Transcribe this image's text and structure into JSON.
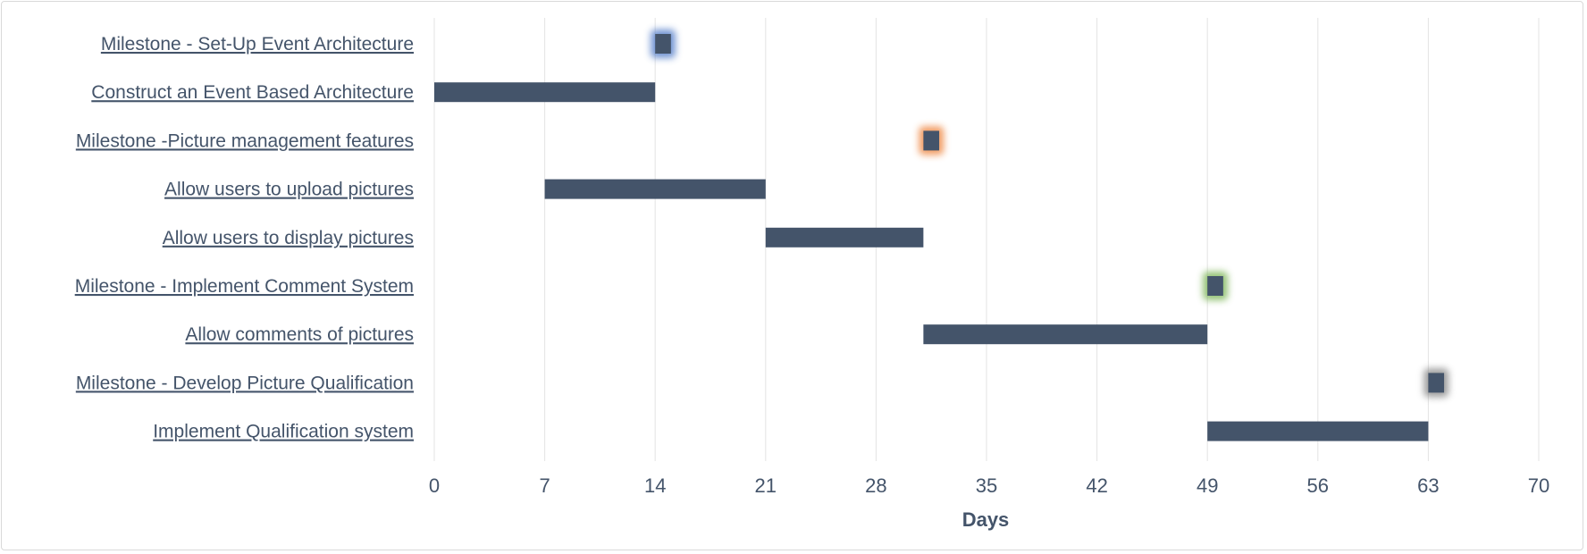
{
  "chart_data": {
    "type": "gantt",
    "xlabel": "Days",
    "xlim": [
      0,
      70
    ],
    "xticks": [
      0,
      7,
      14,
      21,
      28,
      35,
      42,
      49,
      56,
      63,
      70
    ],
    "grid": "vertical",
    "bar_color": "#44546a",
    "tasks": [
      {
        "label": "Milestone - Set-Up Event Architecture",
        "start": 14,
        "duration": 1,
        "milestone": true,
        "glow": "#4472c4"
      },
      {
        "label": "Construct an Event Based Architecture",
        "start": 0,
        "duration": 14,
        "milestone": false
      },
      {
        "label": "Milestone -Picture management features",
        "start": 31,
        "duration": 1,
        "milestone": true,
        "glow": "#ed7d31"
      },
      {
        "label": "Allow users to upload pictures",
        "start": 7,
        "duration": 14,
        "milestone": false
      },
      {
        "label": "Allow users to display pictures",
        "start": 21,
        "duration": 10,
        "milestone": false
      },
      {
        "label": "Milestone - Implement Comment System",
        "start": 49,
        "duration": 1,
        "milestone": true,
        "glow": "#70ad47"
      },
      {
        "label": "Allow comments of pictures",
        "start": 31,
        "duration": 18,
        "milestone": false
      },
      {
        "label": "Milestone - Develop Picture Qualification",
        "start": 63,
        "duration": 1,
        "milestone": true,
        "glow": "#7f7f7f"
      },
      {
        "label": "Implement Qualification system",
        "start": 49,
        "duration": 14,
        "milestone": false
      }
    ]
  }
}
